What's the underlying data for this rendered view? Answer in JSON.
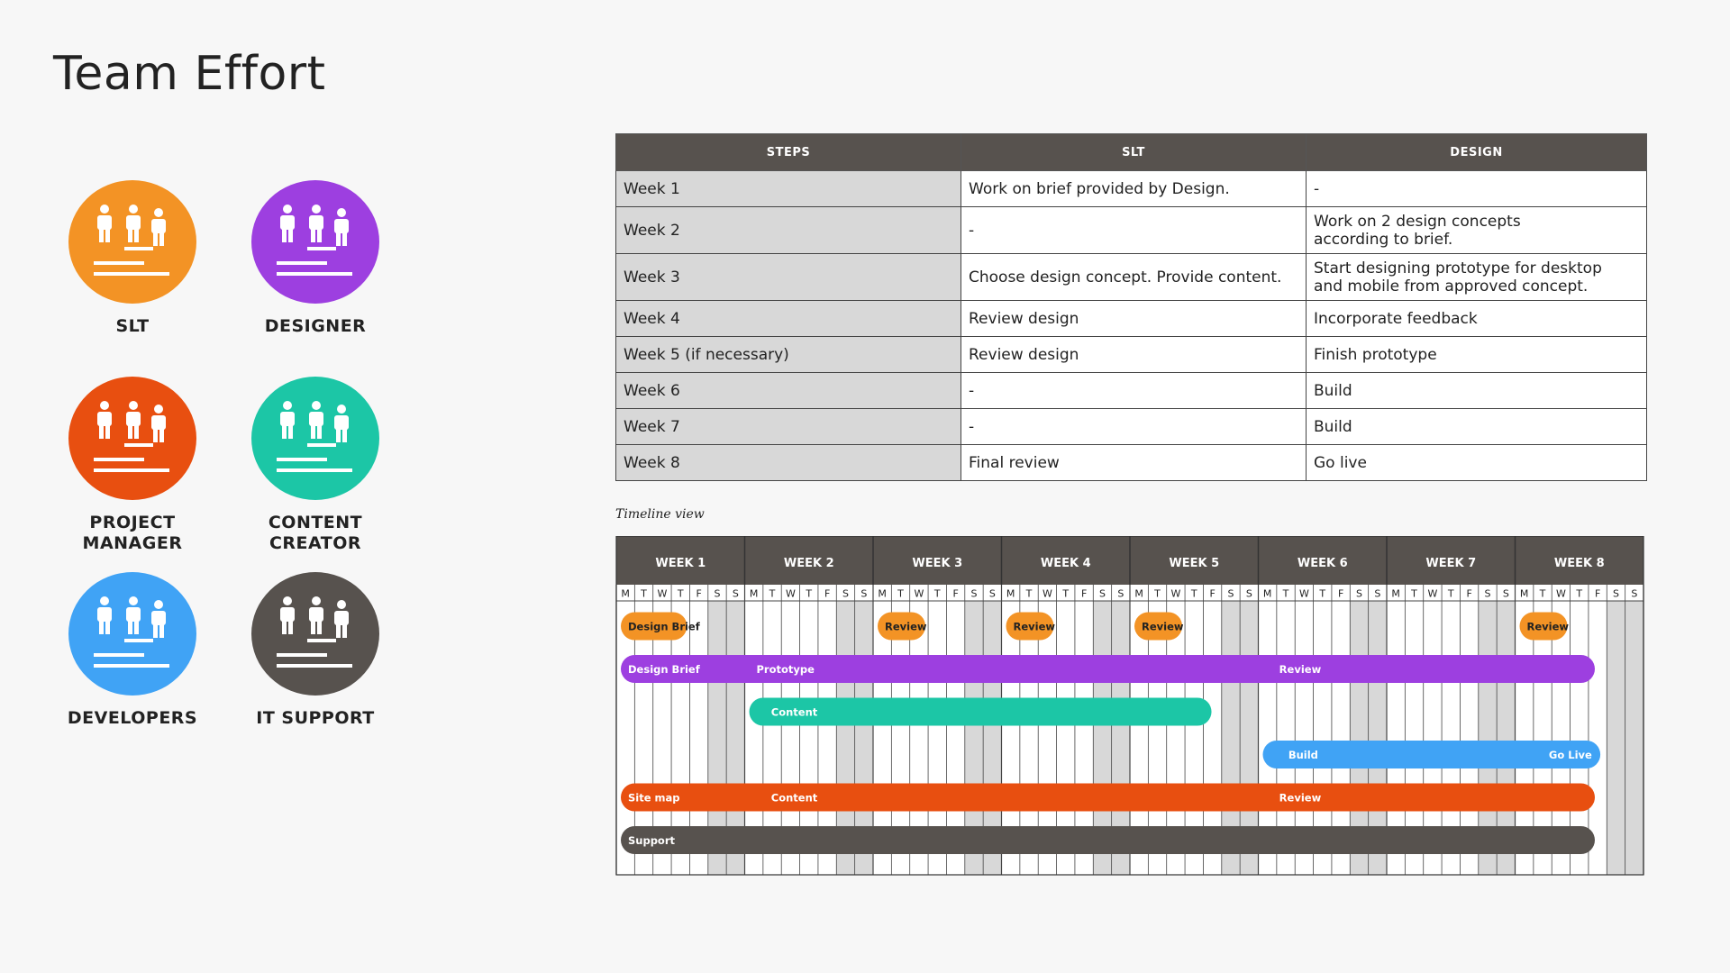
{
  "title": "Team Effort",
  "roles": [
    {
      "name": "SLT",
      "color": "#f39325"
    },
    {
      "name": "DESIGNER",
      "color": "#9d3fe0"
    },
    {
      "name": "PROJECT\nMANAGER",
      "color": "#e84f10"
    },
    {
      "name": "CONTENT\nCREATOR",
      "color": "#1cc6a6"
    },
    {
      "name": "DEVELOPERS",
      "color": "#40a3f5"
    },
    {
      "name": "IT SUPPORT",
      "color": "#57524e"
    }
  ],
  "table": {
    "headers": [
      "STEPS",
      "SLT",
      "DESIGN"
    ],
    "rows": [
      {
        "step": "Week 1",
        "slt": "Work on brief provided by Design.",
        "design": "-"
      },
      {
        "step": "Week 2",
        "slt": "-",
        "design": "Work on 2 design concepts\naccording to brief."
      },
      {
        "step": "Week 3",
        "slt": "Choose design concept. Provide content.",
        "design": "Start designing prototype for desktop\nand mobile from approved concept."
      },
      {
        "step": "Week 4",
        "slt": "Review design",
        "design": "Incorporate feedback"
      },
      {
        "step": "Week 5 (if necessary)",
        "slt": "Review design",
        "design": "Finish prototype"
      },
      {
        "step": "Week 6",
        "slt": "-",
        "design": "Build"
      },
      {
        "step": "Week 7",
        "slt": "-",
        "design": "Build"
      },
      {
        "step": "Week 8",
        "slt": "Final review",
        "design": "Go live"
      }
    ]
  },
  "timeline": {
    "caption": "Timeline view",
    "weeks": [
      "WEEK 1",
      "WEEK 2",
      "WEEK 3",
      "WEEK 4",
      "WEEK 5",
      "WEEK 6",
      "WEEK 7",
      "WEEK 8"
    ],
    "days": [
      "M",
      "T",
      "W",
      "T",
      "F",
      "S",
      "S"
    ],
    "colors": {
      "header": "#57524e",
      "weekend": "#d8d8d8",
      "grid": "#444444"
    },
    "rows": [
      {
        "color": "#f39325",
        "bars": [
          {
            "start": 0,
            "end": 4,
            "labels": [
              {
                "at": 0,
                "text": "Design Brief"
              }
            ],
            "pill": true
          },
          {
            "start": 14,
            "end": 17,
            "labels": [
              {
                "at": 14,
                "text": "Review"
              }
            ],
            "pill": true
          },
          {
            "start": 21,
            "end": 24,
            "labels": [
              {
                "at": 21,
                "text": "Review"
              }
            ],
            "pill": true
          },
          {
            "start": 28,
            "end": 31,
            "labels": [
              {
                "at": 28,
                "text": "Review"
              }
            ],
            "pill": true
          },
          {
            "start": 49,
            "end": 52,
            "labels": [
              {
                "at": 49,
                "text": "Review"
              }
            ],
            "pill": true
          }
        ]
      },
      {
        "color": "#9d3fe0",
        "bars": [
          {
            "start": 0,
            "end": 53.2,
            "labels": [
              {
                "at": 0,
                "text": "Design Brief"
              },
              {
                "at": 7,
                "text": "Prototype"
              },
              {
                "at": 35.5,
                "text": "Review"
              }
            ]
          }
        ]
      },
      {
        "color": "#1cc6a6",
        "bars": [
          {
            "start": 7,
            "end": 32.3,
            "labels": [
              {
                "at": 7.8,
                "text": "Content"
              }
            ]
          }
        ]
      },
      {
        "color": "#40a3f5",
        "bars": [
          {
            "start": 35,
            "end": 53.5,
            "labels": [
              {
                "at": 36,
                "text": "Build"
              },
              {
                "at": 50.2,
                "text": "Go Live"
              }
            ]
          }
        ]
      },
      {
        "color": "#e84f10",
        "bars": [
          {
            "start": 0,
            "end": 53.2,
            "labels": [
              {
                "at": 0,
                "text": "Site map"
              },
              {
                "at": 7.8,
                "text": "Content"
              },
              {
                "at": 35.5,
                "text": "Review"
              }
            ]
          }
        ]
      },
      {
        "color": "#57524e",
        "bars": [
          {
            "start": 0,
            "end": 53.2,
            "labels": [
              {
                "at": 0,
                "text": "Support"
              }
            ]
          }
        ]
      }
    ]
  }
}
